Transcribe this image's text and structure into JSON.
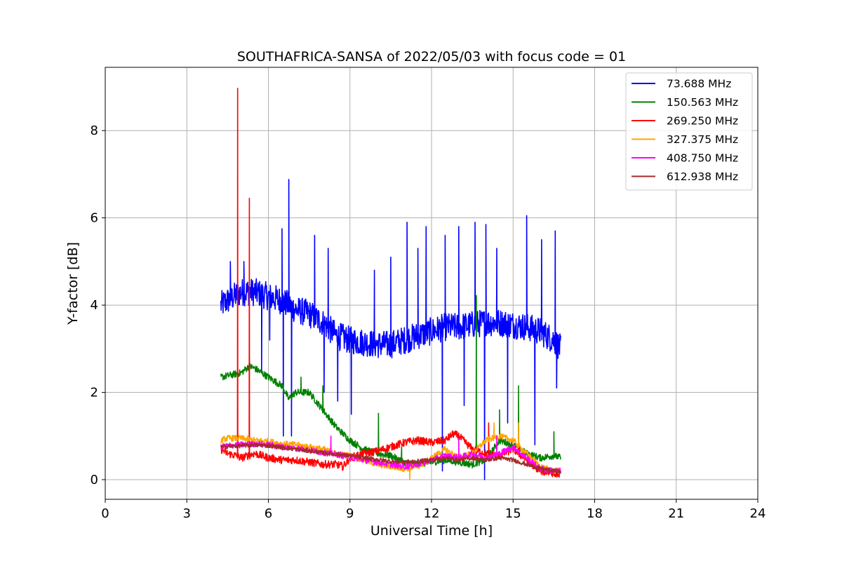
{
  "chart_data": {
    "type": "line",
    "title": "SOUTHAFRICA-SANSA of 2022/05/03 with focus code = 01",
    "xlabel": "Universal Time [h]",
    "ylabel": "Y-factor [dB]",
    "xlim": [
      0,
      24
    ],
    "ylim": [
      -0.45,
      9.45
    ],
    "xticks": [
      0,
      3,
      6,
      9,
      12,
      15,
      18,
      21,
      24
    ],
    "yticks": [
      0,
      2,
      4,
      6,
      8
    ],
    "grid": true,
    "legend_position": "top-right",
    "series": [
      {
        "name": "73.688 MHz",
        "legend_label": " 73.688 MHz",
        "color": "#0000ff",
        "x": [
          4.25,
          4.5,
          5.0,
          5.5,
          6.0,
          6.5,
          7.0,
          7.5,
          8.0,
          8.5,
          9.0,
          9.5,
          10.0,
          10.5,
          11.0,
          11.5,
          12.0,
          12.5,
          13.0,
          13.5,
          14.0,
          14.5,
          15.0,
          15.5,
          16.0,
          16.5,
          16.75
        ],
        "values": [
          4.0,
          4.1,
          4.3,
          4.3,
          4.2,
          4.1,
          3.9,
          3.8,
          3.6,
          3.3,
          3.2,
          3.15,
          3.1,
          3.1,
          3.2,
          3.3,
          3.4,
          3.5,
          3.5,
          3.55,
          3.6,
          3.6,
          3.55,
          3.5,
          3.4,
          3.2,
          3.0
        ],
        "noise": 0.32,
        "spikes": [
          {
            "x": 4.6,
            "y": 5.0
          },
          {
            "x": 5.1,
            "y": 5.0
          },
          {
            "x": 5.75,
            "y": 2.5
          },
          {
            "x": 6.05,
            "y": 3.2
          },
          {
            "x": 6.5,
            "y": 5.75
          },
          {
            "x": 6.55,
            "y": 1.0
          },
          {
            "x": 6.75,
            "y": 6.88
          },
          {
            "x": 6.85,
            "y": 1.0
          },
          {
            "x": 7.7,
            "y": 5.6
          },
          {
            "x": 8.2,
            "y": 5.3
          },
          {
            "x": 8.05,
            "y": 2.0
          },
          {
            "x": 8.55,
            "y": 1.8
          },
          {
            "x": 9.05,
            "y": 1.5
          },
          {
            "x": 9.9,
            "y": 4.8
          },
          {
            "x": 10.5,
            "y": 5.1
          },
          {
            "x": 11.1,
            "y": 5.9
          },
          {
            "x": 11.5,
            "y": 5.3
          },
          {
            "x": 11.8,
            "y": 5.8
          },
          {
            "x": 12.4,
            "y": 0.2
          },
          {
            "x": 12.5,
            "y": 5.6
          },
          {
            "x": 13.0,
            "y": 5.8
          },
          {
            "x": 13.2,
            "y": 1.7
          },
          {
            "x": 13.6,
            "y": 5.9
          },
          {
            "x": 13.95,
            "y": 0.0
          },
          {
            "x": 14.0,
            "y": 5.85
          },
          {
            "x": 14.4,
            "y": 5.3
          },
          {
            "x": 14.8,
            "y": 1.3
          },
          {
            "x": 15.5,
            "y": 6.05
          },
          {
            "x": 15.8,
            "y": 0.8
          },
          {
            "x": 16.05,
            "y": 5.5
          },
          {
            "x": 16.55,
            "y": 5.7
          },
          {
            "x": 16.6,
            "y": 2.1
          }
        ]
      },
      {
        "name": "150.563 MHz",
        "legend_label": "150.563 MHz",
        "color": "#008000",
        "x": [
          4.25,
          4.5,
          5.0,
          5.3,
          5.5,
          6.0,
          6.5,
          6.75,
          7.0,
          7.5,
          8.0,
          8.5,
          9.0,
          9.5,
          10.0,
          10.5,
          11.0,
          11.5,
          12.0,
          12.5,
          13.0,
          13.5,
          14.0,
          14.5,
          15.0,
          15.5,
          16.0,
          16.5,
          16.75
        ],
        "values": [
          2.35,
          2.38,
          2.45,
          2.6,
          2.55,
          2.35,
          2.15,
          1.85,
          2.0,
          2.0,
          1.6,
          1.2,
          0.9,
          0.7,
          0.6,
          0.55,
          0.4,
          0.35,
          0.4,
          0.45,
          0.4,
          0.35,
          0.45,
          0.9,
          0.8,
          0.6,
          0.5,
          0.55,
          0.5
        ],
        "noise": 0.08,
        "spikes": [
          {
            "x": 5.3,
            "y": 2.8
          },
          {
            "x": 7.2,
            "y": 2.35
          },
          {
            "x": 8.0,
            "y": 2.15
          },
          {
            "x": 10.05,
            "y": 1.52
          },
          {
            "x": 10.9,
            "y": 0.75
          },
          {
            "x": 13.65,
            "y": 4.22
          },
          {
            "x": 14.5,
            "y": 1.6
          },
          {
            "x": 15.2,
            "y": 2.15
          },
          {
            "x": 16.5,
            "y": 1.1
          }
        ]
      },
      {
        "name": "269.250 MHz",
        "legend_label": "269.250 MHz",
        "color": "#ff0000",
        "x": [
          4.25,
          4.5,
          4.8,
          5.0,
          5.5,
          6.0,
          6.5,
          7.0,
          7.5,
          8.0,
          8.5,
          8.75,
          9.0,
          9.5,
          10.0,
          10.5,
          11.0,
          11.5,
          12.0,
          12.5,
          12.8,
          13.0,
          13.5,
          14.0,
          14.5,
          15.0,
          15.5,
          16.0,
          16.5,
          16.75
        ],
        "values": [
          0.7,
          0.6,
          0.55,
          0.5,
          0.6,
          0.5,
          0.45,
          0.45,
          0.4,
          0.35,
          0.35,
          0.3,
          0.5,
          0.6,
          0.65,
          0.75,
          0.85,
          0.9,
          0.85,
          0.9,
          1.05,
          1.0,
          0.7,
          0.6,
          0.55,
          0.7,
          0.45,
          0.2,
          0.15,
          0.12
        ],
        "noise": 0.09,
        "spikes": [
          {
            "x": 4.87,
            "y": 8.97
          },
          {
            "x": 5.3,
            "y": 6.45
          },
          {
            "x": 14.1,
            "y": 1.3
          },
          {
            "x": 15.2,
            "y": 1.0
          }
        ]
      },
      {
        "name": "327.375 MHz",
        "legend_label": "327.375 MHz",
        "color": "#ffa500",
        "x": [
          4.25,
          4.5,
          5.0,
          5.5,
          6.0,
          6.5,
          7.0,
          7.5,
          8.0,
          8.5,
          9.0,
          9.5,
          10.0,
          10.5,
          11.0,
          11.5,
          12.0,
          12.5,
          13.0,
          13.5,
          14.0,
          14.5,
          15.0,
          15.5,
          16.0,
          16.5,
          16.75
        ],
        "values": [
          0.9,
          0.95,
          0.95,
          0.9,
          0.88,
          0.82,
          0.8,
          0.75,
          0.7,
          0.6,
          0.55,
          0.45,
          0.35,
          0.3,
          0.25,
          0.3,
          0.5,
          0.7,
          0.5,
          0.6,
          0.9,
          1.0,
          0.9,
          0.6,
          0.3,
          0.2,
          0.2
        ],
        "noise": 0.07,
        "spikes": [
          {
            "x": 11.2,
            "y": 0.0
          },
          {
            "x": 14.3,
            "y": 1.3
          },
          {
            "x": 15.2,
            "y": 1.3
          }
        ]
      },
      {
        "name": "408.750 MHz",
        "legend_label": "408.750 MHz",
        "color": "#ff00ff",
        "x": [
          4.25,
          4.5,
          5.0,
          5.5,
          6.0,
          6.5,
          7.0,
          7.5,
          8.0,
          8.5,
          9.0,
          9.5,
          10.0,
          10.5,
          11.0,
          11.5,
          12.0,
          12.5,
          13.0,
          13.5,
          14.0,
          14.5,
          15.0,
          15.5,
          16.0,
          16.5,
          16.75
        ],
        "values": [
          0.75,
          0.78,
          0.8,
          0.82,
          0.8,
          0.75,
          0.72,
          0.68,
          0.62,
          0.58,
          0.52,
          0.45,
          0.4,
          0.35,
          0.3,
          0.35,
          0.45,
          0.55,
          0.5,
          0.6,
          0.5,
          0.6,
          0.75,
          0.5,
          0.25,
          0.2,
          0.2
        ],
        "noise": 0.07,
        "spikes": [
          {
            "x": 8.3,
            "y": 1.0
          },
          {
            "x": 13.0,
            "y": 0.95
          },
          {
            "x": 14.4,
            "y": 1.0
          }
        ]
      },
      {
        "name": "612.938 MHz",
        "legend_label": "612.938 MHz",
        "color": "#a52a2a",
        "x": [
          4.25,
          4.5,
          5.0,
          5.5,
          6.0,
          6.5,
          7.0,
          7.5,
          8.0,
          8.5,
          9.0,
          9.5,
          10.0,
          10.5,
          11.0,
          11.5,
          12.0,
          12.5,
          13.0,
          13.5,
          14.0,
          14.5,
          15.0,
          15.5,
          16.0,
          16.5,
          16.75
        ],
        "values": [
          0.75,
          0.76,
          0.78,
          0.8,
          0.78,
          0.74,
          0.7,
          0.66,
          0.62,
          0.58,
          0.55,
          0.5,
          0.46,
          0.42,
          0.4,
          0.42,
          0.45,
          0.5,
          0.45,
          0.5,
          0.45,
          0.5,
          0.45,
          0.35,
          0.25,
          0.2,
          0.18
        ],
        "noise": 0.05,
        "spikes": []
      }
    ]
  }
}
